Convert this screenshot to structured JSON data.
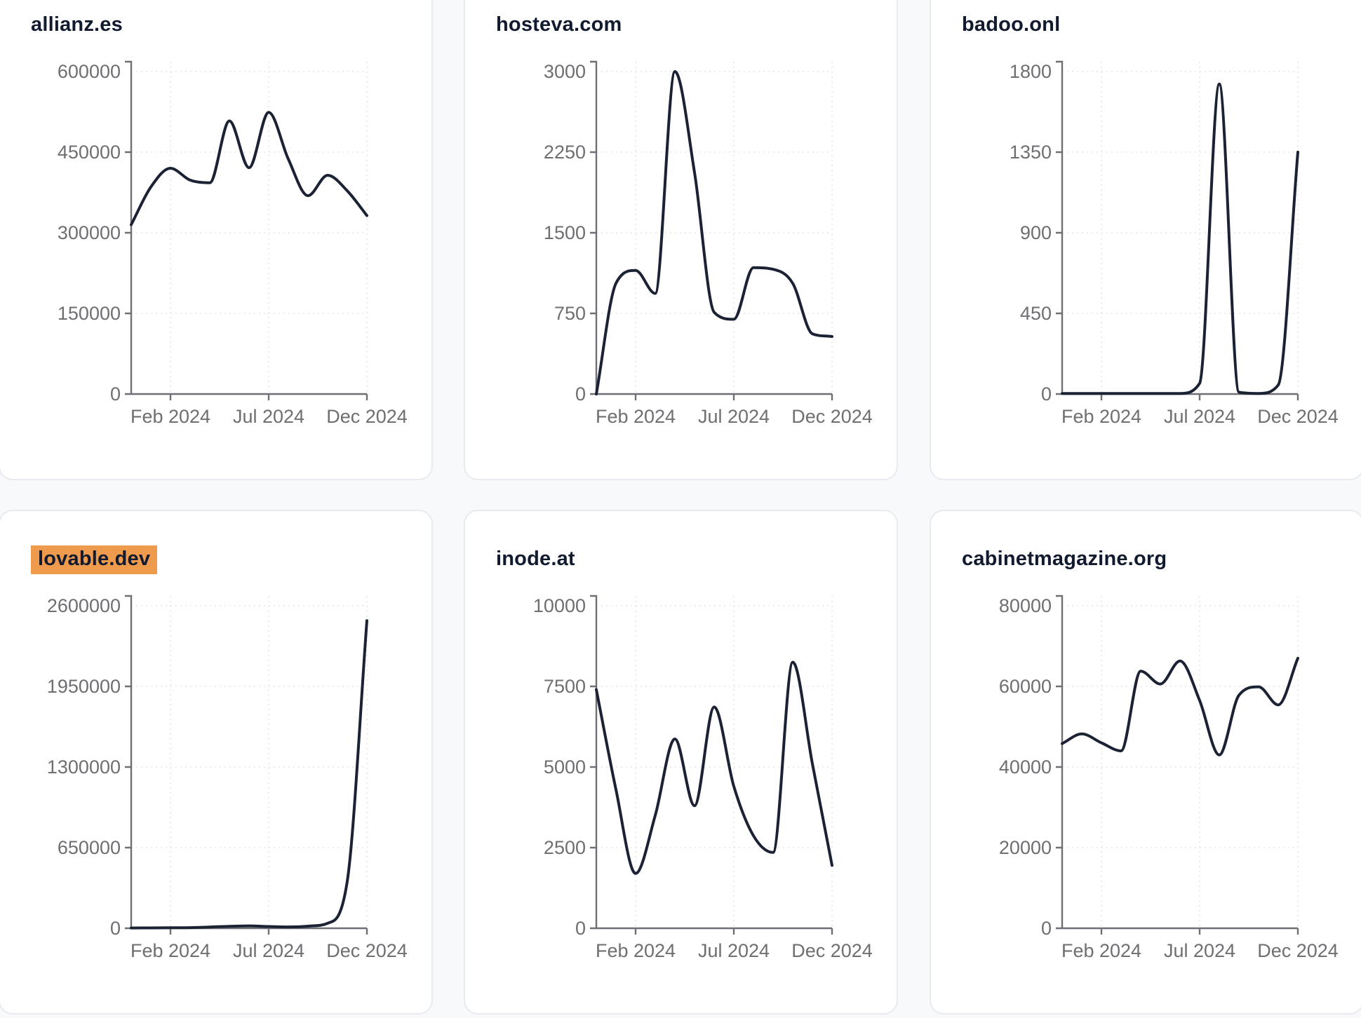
{
  "page": {
    "background_color": "#f8f9fb",
    "card_background": "#ffffff",
    "card_border_color": "#e9eaef",
    "line_color": "#1b2234",
    "highlight_color": "#ef9b4d",
    "axis_color": "#6f6f76",
    "grid_color": "#e6e6ea",
    "tick_text_color": "#6e6e73",
    "title_text_color": "#111a2e"
  },
  "chart_data": [
    {
      "type": "line",
      "title": "allianz.es",
      "highlighted": false,
      "x": [
        "Dec 2023",
        "Jan 2024",
        "Feb 2024",
        "Mar 2024",
        "Apr 2024",
        "May 2024",
        "Jun 2024",
        "Jul 2024",
        "Aug 2024",
        "Sep 2024",
        "Oct 2024",
        "Nov 2024",
        "Dec 2024"
      ],
      "values": [
        315000,
        385000,
        420000,
        398000,
        393000,
        508000,
        421000,
        524000,
        437000,
        369000,
        407000,
        378000,
        332000
      ],
      "x_tick_labels": [
        "Feb 2024",
        "Jul 2024",
        "Dec 2024"
      ],
      "x_tick_month_index": [
        2,
        7,
        12
      ],
      "y_ticks": [
        0,
        150000,
        300000,
        450000,
        600000
      ],
      "ylim": [
        0,
        600000
      ],
      "grid": true,
      "legend": "none"
    },
    {
      "type": "line",
      "title": "hosteva.com",
      "highlighted": false,
      "x": [
        "Dec 2023",
        "Jan 2024",
        "Feb 2024",
        "Mar 2024",
        "Apr 2024",
        "May 2024",
        "Jun 2024",
        "Jul 2024",
        "Aug 2024",
        "Sep 2024",
        "Oct 2024",
        "Nov 2024",
        "Dec 2024"
      ],
      "values": [
        0,
        1030,
        1150,
        935,
        3000,
        2060,
        760,
        695,
        1175,
        1160,
        1030,
        560,
        535
      ],
      "x_tick_labels": [
        "Feb 2024",
        "Jul 2024",
        "Dec 2024"
      ],
      "x_tick_month_index": [
        2,
        7,
        12
      ],
      "y_ticks": [
        0,
        750,
        1500,
        2250,
        3000
      ],
      "ylim": [
        0,
        3000
      ],
      "grid": true,
      "legend": "none"
    },
    {
      "type": "line",
      "title": "badoo.onl",
      "highlighted": false,
      "x": [
        "Dec 2023",
        "Jan 2024",
        "Feb 2024",
        "Mar 2024",
        "Apr 2024",
        "May 2024",
        "Jun 2024",
        "Jul 2024",
        "Aug 2024",
        "Sep 2024",
        "Oct 2024",
        "Nov 2024",
        "Dec 2024"
      ],
      "values": [
        3,
        3,
        3,
        3,
        3,
        3,
        3,
        60,
        1730,
        10,
        3,
        50,
        1350
      ],
      "x_tick_labels": [
        "Feb 2024",
        "Jul 2024",
        "Dec 2024"
      ],
      "x_tick_month_index": [
        2,
        7,
        12
      ],
      "y_ticks": [
        0,
        450,
        900,
        1350,
        1800
      ],
      "ylim": [
        0,
        1800
      ],
      "grid": true,
      "legend": "none"
    },
    {
      "type": "line",
      "title": "lovable.dev",
      "highlighted": true,
      "x": [
        "Dec 2023",
        "Jan 2024",
        "Feb 2024",
        "Mar 2024",
        "Apr 2024",
        "May 2024",
        "Jun 2024",
        "Jul 2024",
        "Aug 2024",
        "Sep 2024",
        "Oct 2024",
        "Nov 2024",
        "Dec 2024"
      ],
      "values": [
        2000,
        3000,
        4000,
        5000,
        10000,
        16000,
        19000,
        14000,
        11000,
        17000,
        40000,
        380000,
        2480000
      ],
      "x_tick_labels": [
        "Feb 2024",
        "Jul 2024",
        "Dec 2024"
      ],
      "x_tick_month_index": [
        2,
        7,
        12
      ],
      "y_ticks": [
        0,
        650000,
        1300000,
        1950000,
        2600000
      ],
      "ylim": [
        0,
        2600000
      ],
      "grid": true,
      "legend": "none"
    },
    {
      "type": "line",
      "title": "inode.at",
      "highlighted": false,
      "x": [
        "Dec 2023",
        "Jan 2024",
        "Feb 2024",
        "Mar 2024",
        "Apr 2024",
        "May 2024",
        "Jun 2024",
        "Jul 2024",
        "Aug 2024",
        "Sep 2024",
        "Oct 2024",
        "Nov 2024",
        "Dec 2024"
      ],
      "values": [
        7400,
        4300,
        1700,
        3500,
        5870,
        3800,
        6860,
        4400,
        2870,
        2350,
        8250,
        5100,
        1950
      ],
      "x_tick_labels": [
        "Feb 2024",
        "Jul 2024",
        "Dec 2024"
      ],
      "x_tick_month_index": [
        2,
        7,
        12
      ],
      "y_ticks": [
        0,
        2500,
        5000,
        7500,
        10000
      ],
      "ylim": [
        0,
        10000
      ],
      "grid": true,
      "legend": "none"
    },
    {
      "type": "line",
      "title": "cabinetmagazine.org",
      "highlighted": false,
      "x": [
        "Dec 2023",
        "Jan 2024",
        "Feb 2024",
        "Mar 2024",
        "Apr 2024",
        "May 2024",
        "Jun 2024",
        "Jul 2024",
        "Aug 2024",
        "Sep 2024",
        "Oct 2024",
        "Nov 2024",
        "Dec 2024"
      ],
      "values": [
        45800,
        48200,
        46000,
        44000,
        63800,
        60600,
        66300,
        56500,
        43000,
        57800,
        59900,
        55400,
        67000
      ],
      "x_tick_labels": [
        "Feb 2024",
        "Jul 2024",
        "Dec 2024"
      ],
      "x_tick_month_index": [
        2,
        7,
        12
      ],
      "y_ticks": [
        0,
        20000,
        40000,
        60000,
        80000
      ],
      "ylim": [
        0,
        80000
      ],
      "grid": true,
      "legend": "none"
    }
  ]
}
